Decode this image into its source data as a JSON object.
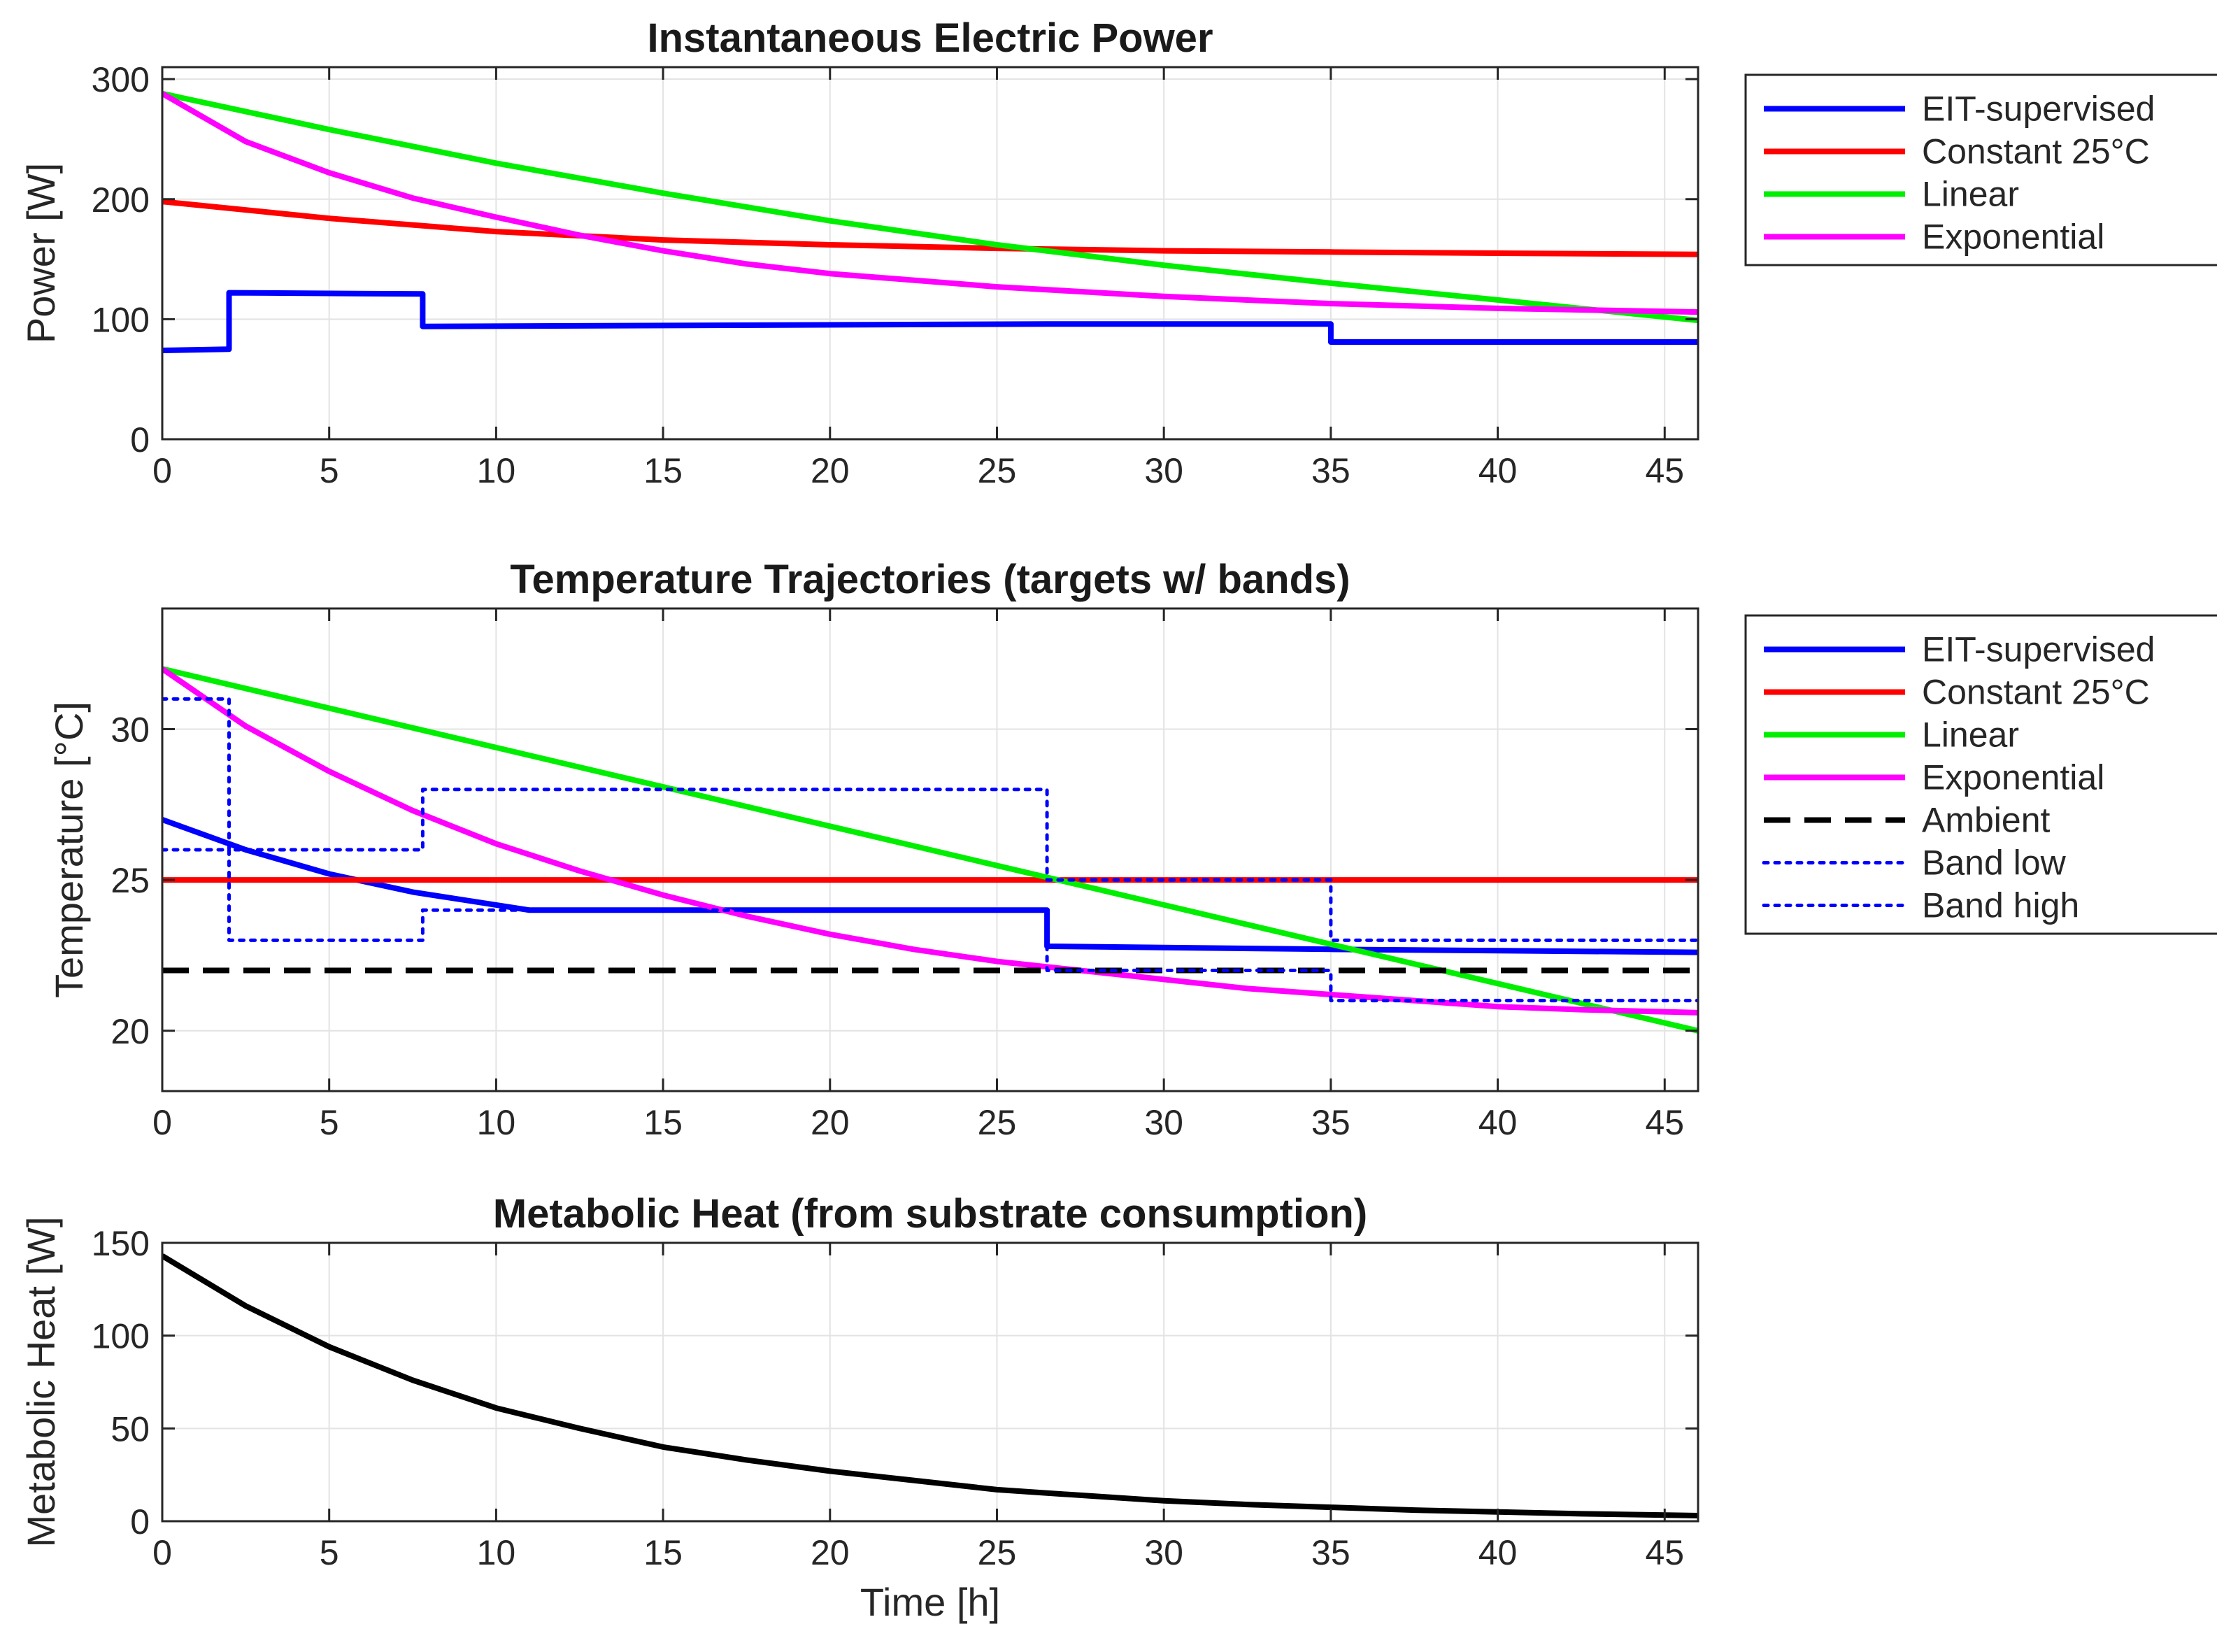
{
  "chart_data": [
    {
      "id": "power",
      "type": "line",
      "title": "Instantaneous Electric Power",
      "xlabel": "",
      "ylabel": "Power [W]",
      "xlim": [
        0,
        46
      ],
      "ylim": [
        0,
        310
      ],
      "xticks": [
        0,
        5,
        10,
        15,
        20,
        25,
        30,
        35,
        40,
        45
      ],
      "yticks": [
        0,
        100,
        200,
        300
      ],
      "grid": true,
      "legend_position": "outside-right",
      "series": [
        {
          "name": "EIT-supervised",
          "color": "#0000ff",
          "style": "solid",
          "x": [
            0,
            2,
            2,
            7.8,
            7.8,
            26.5,
            35,
            35,
            46
          ],
          "y": [
            74,
            75,
            122,
            121,
            94,
            96,
            96,
            81,
            81
          ]
        },
        {
          "name": "Constant 25°C",
          "color": "#ff0000",
          "style": "solid",
          "x": [
            0,
            5,
            10,
            15,
            20,
            25,
            30,
            35,
            40,
            46
          ],
          "y": [
            198,
            184,
            173,
            166,
            162,
            159,
            157,
            156,
            155,
            154
          ]
        },
        {
          "name": "Linear",
          "color": "#00ee00",
          "style": "solid",
          "x": [
            0,
            5,
            10,
            15,
            20,
            25,
            30,
            35,
            40,
            46
          ],
          "y": [
            288,
            258,
            230,
            205,
            182,
            162,
            145,
            130,
            116,
            99
          ]
        },
        {
          "name": "Exponential",
          "color": "#ff00ff",
          "style": "solid",
          "x": [
            0,
            2.5,
            5,
            7.5,
            10,
            12.5,
            15,
            17.5,
            20,
            25,
            30,
            35,
            40,
            46
          ],
          "y": [
            288,
            248,
            222,
            201,
            185,
            170,
            157,
            146,
            138,
            127,
            119,
            113,
            109,
            106
          ]
        }
      ]
    },
    {
      "id": "temperature",
      "type": "line",
      "title": "Temperature Trajectories (targets w/ bands)",
      "xlabel": "",
      "ylabel": "Temperature [°C]",
      "xlim": [
        0,
        46
      ],
      "ylim": [
        18,
        34
      ],
      "xticks": [
        0,
        5,
        10,
        15,
        20,
        25,
        30,
        35,
        40,
        45
      ],
      "yticks": [
        20,
        25,
        30
      ],
      "grid": true,
      "legend_position": "outside-right",
      "series": [
        {
          "name": "EIT-supervised",
          "color": "#0000ff",
          "style": "solid",
          "x": [
            0,
            2.5,
            5,
            7.5,
            11,
            26.5,
            26.5,
            35,
            46
          ],
          "y": [
            27,
            26,
            25.2,
            24.6,
            24,
            24,
            22.8,
            22.7,
            22.6
          ]
        },
        {
          "name": "Constant 25°C",
          "color": "#ff0000",
          "style": "solid",
          "x": [
            0,
            46
          ],
          "y": [
            25,
            25
          ]
        },
        {
          "name": "Linear",
          "color": "#00ee00",
          "style": "solid",
          "x": [
            0,
            46
          ],
          "y": [
            32,
            20
          ]
        },
        {
          "name": "Exponential",
          "color": "#ff00ff",
          "style": "solid",
          "x": [
            0,
            2.5,
            5,
            7.5,
            10,
            12.5,
            15,
            17.5,
            20,
            22.5,
            25,
            27.5,
            30,
            32.5,
            35,
            37.5,
            40,
            42.5,
            46
          ],
          "y": [
            32,
            30.1,
            28.6,
            27.3,
            26.2,
            25.3,
            24.5,
            23.8,
            23.2,
            22.7,
            22.3,
            22.0,
            21.7,
            21.4,
            21.2,
            21.0,
            20.8,
            20.7,
            20.6
          ]
        },
        {
          "name": "Ambient",
          "color": "#000000",
          "style": "dashed",
          "x": [
            0,
            46
          ],
          "y": [
            22,
            22
          ]
        },
        {
          "name": "Band low",
          "color": "#0000ff",
          "style": "dotted",
          "x": [
            0,
            2,
            2,
            7.8,
            7.8,
            26.5,
            26.5,
            35,
            35,
            46
          ],
          "y": [
            26,
            26,
            23,
            23,
            24,
            24,
            22,
            22,
            21,
            21
          ]
        },
        {
          "name": "Band high",
          "color": "#0000ff",
          "style": "dotted",
          "x": [
            0,
            2,
            2,
            7.8,
            7.8,
            26.5,
            26.5,
            35,
            35,
            46
          ],
          "y": [
            31,
            31,
            26,
            26,
            28,
            28,
            25,
            25,
            23,
            23
          ]
        }
      ]
    },
    {
      "id": "metabolic",
      "type": "line",
      "title": "Metabolic Heat (from substrate consumption)",
      "xlabel": "Time [h]",
      "ylabel": "Metabolic Heat [W]",
      "xlim": [
        0,
        46
      ],
      "ylim": [
        0,
        150
      ],
      "xticks": [
        0,
        5,
        10,
        15,
        20,
        25,
        30,
        35,
        40,
        45
      ],
      "yticks": [
        0,
        50,
        100,
        150
      ],
      "grid": true,
      "legend_position": "none",
      "series": [
        {
          "name": "Metabolic heat",
          "color": "#000000",
          "style": "solid",
          "x": [
            0,
            2.5,
            5,
            7.5,
            10,
            12.5,
            15,
            17.5,
            20,
            22.5,
            25,
            27.5,
            30,
            32.5,
            35,
            37.5,
            40,
            42.5,
            46
          ],
          "y": [
            143,
            116,
            94,
            76,
            61,
            50,
            40,
            33,
            27,
            22,
            17,
            14,
            11,
            9,
            7.5,
            6,
            5,
            4,
            3
          ]
        }
      ]
    }
  ]
}
